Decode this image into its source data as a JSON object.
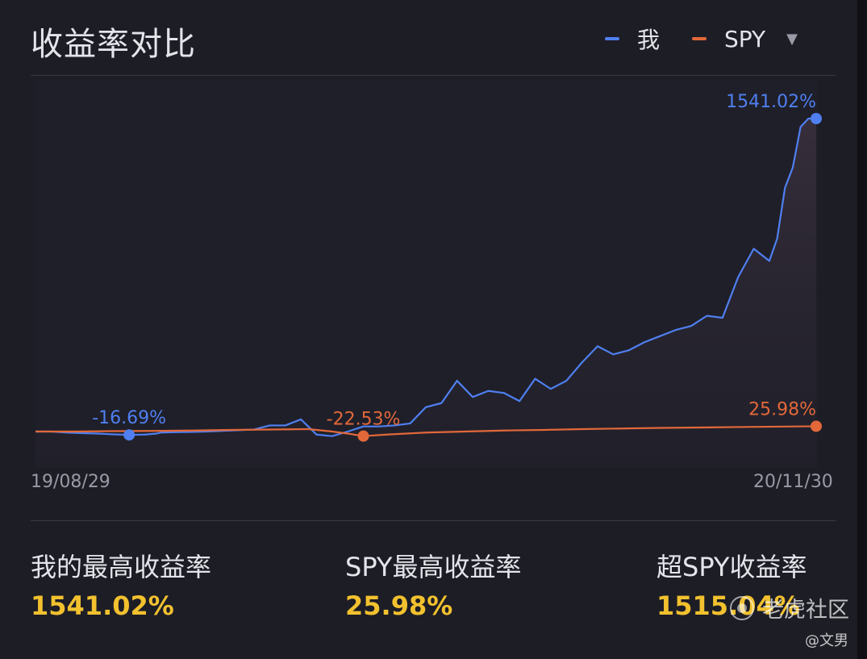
{
  "header": {
    "title": "收益率对比"
  },
  "legend": {
    "items": [
      {
        "label": "我",
        "color": "#4f7ff0"
      },
      {
        "label": "SPY",
        "color": "#e2683a"
      }
    ],
    "dropdown_icon": "chevron-down-icon"
  },
  "stats": {
    "mine": {
      "label": "我的最高收益率",
      "value": "1541.02%"
    },
    "spy": {
      "label": "SPY最高收益率",
      "value": "25.98%"
    },
    "excess": {
      "label": "超SPY收益率",
      "value": "1515.04%"
    }
  },
  "watermark": {
    "brand": "老虎社区",
    "author": "@文男"
  },
  "chart_data": {
    "type": "line",
    "title": "收益率对比",
    "x_start": "19/08/29",
    "x_end": "20/11/30",
    "ylim": [
      -60,
      1600
    ],
    "grid": false,
    "legend_position": "top-right",
    "series": [
      {
        "name": "我",
        "color": "#4f7ff0",
        "x": [
          0,
          0.02,
          0.04,
          0.06,
          0.08,
          0.1,
          0.12,
          0.14,
          0.155,
          0.16,
          0.18,
          0.2,
          0.22,
          0.25,
          0.28,
          0.3,
          0.32,
          0.34,
          0.36,
          0.38,
          0.4,
          0.42,
          0.44,
          0.46,
          0.48,
          0.5,
          0.52,
          0.54,
          0.56,
          0.58,
          0.6,
          0.62,
          0.64,
          0.66,
          0.68,
          0.7,
          0.72,
          0.74,
          0.76,
          0.78,
          0.8,
          0.82,
          0.84,
          0.86,
          0.88,
          0.9,
          0.92,
          0.94,
          0.95,
          0.96,
          0.97,
          0.98,
          0.99,
          1.0
        ],
        "values": [
          0,
          0,
          -5,
          -8,
          -10,
          -14,
          -16.69,
          -15,
          -10,
          -5,
          -3,
          -2,
          0,
          5,
          10,
          30,
          30,
          60,
          -15,
          -22.53,
          0,
          25,
          25,
          30,
          40,
          120,
          140,
          250,
          170,
          200,
          190,
          150,
          260,
          210,
          250,
          340,
          420,
          380,
          400,
          440,
          470,
          500,
          520,
          570,
          560,
          760,
          900,
          840,
          950,
          1200,
          1300,
          1500,
          1541.02,
          1541.02
        ]
      },
      {
        "name": "SPY",
        "color": "#e2683a",
        "x": [
          0,
          0.05,
          0.1,
          0.15,
          0.2,
          0.25,
          0.3,
          0.35,
          0.38,
          0.4,
          0.42,
          0.45,
          0.5,
          0.55,
          0.6,
          0.65,
          0.7,
          0.75,
          0.8,
          0.85,
          0.9,
          0.95,
          1.0
        ],
        "values": [
          0,
          0,
          2,
          3,
          5,
          8,
          10,
          12,
          0,
          -10,
          -22.53,
          -15,
          -5,
          0,
          5,
          8,
          12,
          15,
          18,
          20,
          22,
          24,
          25.98
        ]
      }
    ],
    "annotations": [
      {
        "series": "我",
        "x": 0.12,
        "label": "-16.69%"
      },
      {
        "series": "SPY",
        "x": 0.42,
        "label": "-22.53%"
      },
      {
        "series": "我",
        "x": 1.0,
        "label": "1541.02%"
      },
      {
        "series": "SPY",
        "x": 1.0,
        "label": "25.98%"
      }
    ]
  }
}
